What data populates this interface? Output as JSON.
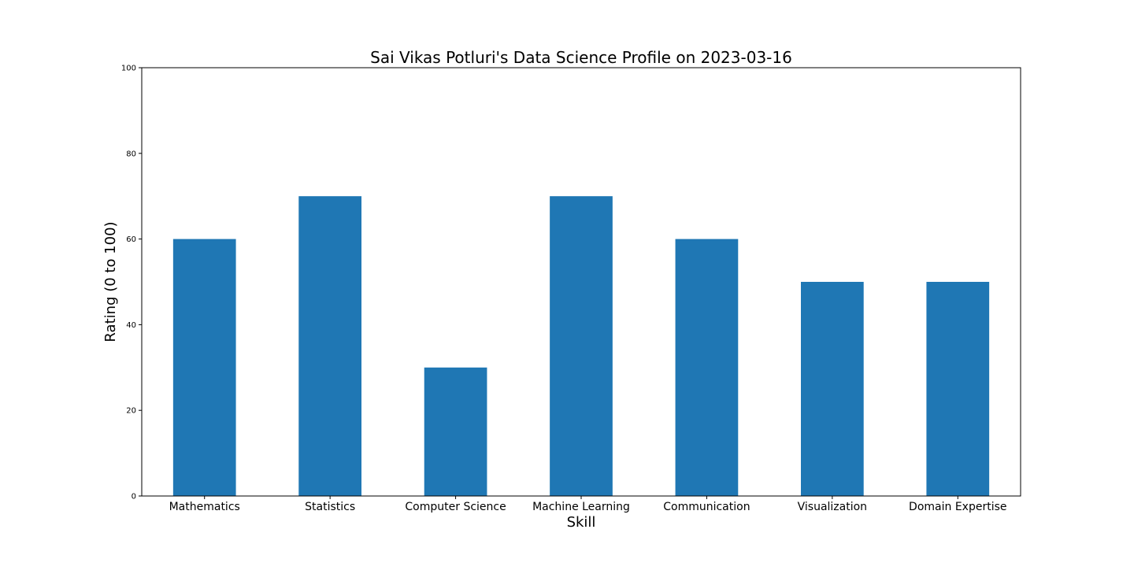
{
  "chart_data": {
    "type": "bar",
    "title": "Sai Vikas Potluri's Data Science Profile on 2023-03-16",
    "xlabel": "Skill",
    "ylabel": "Rating (0 to 100)",
    "categories": [
      "Mathematics",
      "Statistics",
      "Computer Science",
      "Machine Learning",
      "Communication",
      "Visualization",
      "Domain Expertise"
    ],
    "values": [
      60,
      70,
      30,
      70,
      60,
      50,
      50
    ],
    "ylim": [
      0,
      100
    ],
    "yticks": [
      "0",
      "20",
      "40",
      "60",
      "80",
      "100"
    ],
    "grid": false,
    "legend": "none",
    "bar_color": "#1f77b4"
  }
}
